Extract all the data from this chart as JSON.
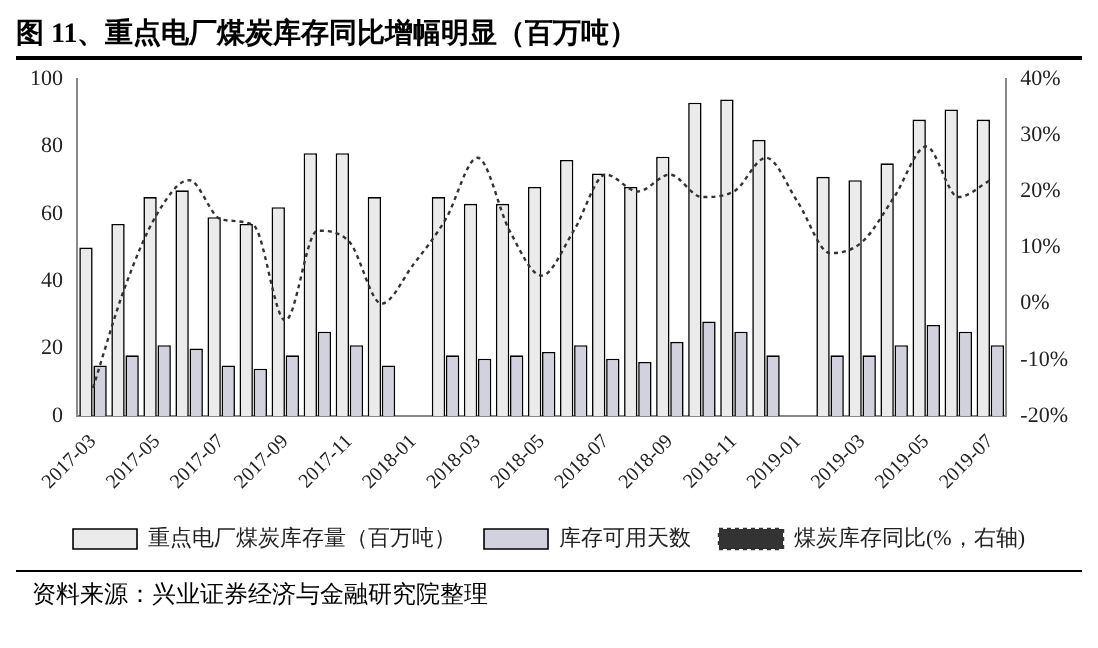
{
  "chart_data": {
    "type": "bar",
    "title": "图 11、重点电厂煤炭库存同比增幅明显（百万吨）",
    "categories": [
      "2017-03",
      null,
      "2017-05",
      null,
      "2017-07",
      null,
      "2017-09",
      null,
      "2017-11",
      null,
      "2018-01",
      null,
      "2018-03",
      null,
      "2018-05",
      null,
      "2018-07",
      null,
      "2018-09",
      null,
      "2018-11",
      null,
      "2019-01",
      null,
      "2019-03",
      null,
      "2019-05",
      null,
      "2019-07"
    ],
    "series": [
      {
        "name": "重点电厂煤炭库存量（百万吨）",
        "color": "#ebebeb",
        "values": [
          50,
          57,
          65,
          67,
          59,
          57,
          62,
          78,
          78,
          65,
          null,
          65,
          63,
          63,
          68,
          76,
          72,
          68,
          77,
          93,
          94,
          82,
          null,
          71,
          70,
          75,
          88,
          91,
          88
        ]
      },
      {
        "name": "库存可用天数",
        "color": "#d2d2de",
        "values": [
          15,
          18,
          21,
          20,
          15,
          14,
          18,
          25,
          21,
          15,
          null,
          18,
          17,
          18,
          19,
          21,
          17,
          16,
          22,
          28,
          25,
          18,
          null,
          18,
          18,
          21,
          27,
          25,
          21
        ]
      },
      {
        "name": "煤炭库存同比(%，右轴)",
        "type": "line",
        "axis": "y2",
        "color": "#333333",
        "line_style": "dotted",
        "marker": "none",
        "values": [
          -15,
          3,
          16,
          22,
          15,
          14,
          -3,
          13,
          11,
          0,
          7,
          15,
          26,
          13,
          5,
          13,
          23,
          20,
          23,
          19,
          20,
          26,
          18,
          9,
          11,
          19,
          28,
          19,
          22
        ]
      }
    ],
    "ylim": [
      0,
      100
    ],
    "yticks": [
      0,
      20,
      40,
      60,
      80,
      100
    ],
    "y2lim": [
      -20,
      40
    ],
    "y2ticks": [
      {
        "value": -20,
        "label": "-20%"
      },
      {
        "value": -10,
        "label": "-10%"
      },
      {
        "value": 0,
        "label": "0%"
      },
      {
        "value": 10,
        "label": "10%"
      },
      {
        "value": 20,
        "label": "20%"
      },
      {
        "value": 30,
        "label": "30%"
      },
      {
        "value": 40,
        "label": "40%"
      }
    ],
    "grid": false,
    "legend": "bottom",
    "annotations": [
      "资料来源：兴业证券经济与金融研究院整理"
    ]
  }
}
